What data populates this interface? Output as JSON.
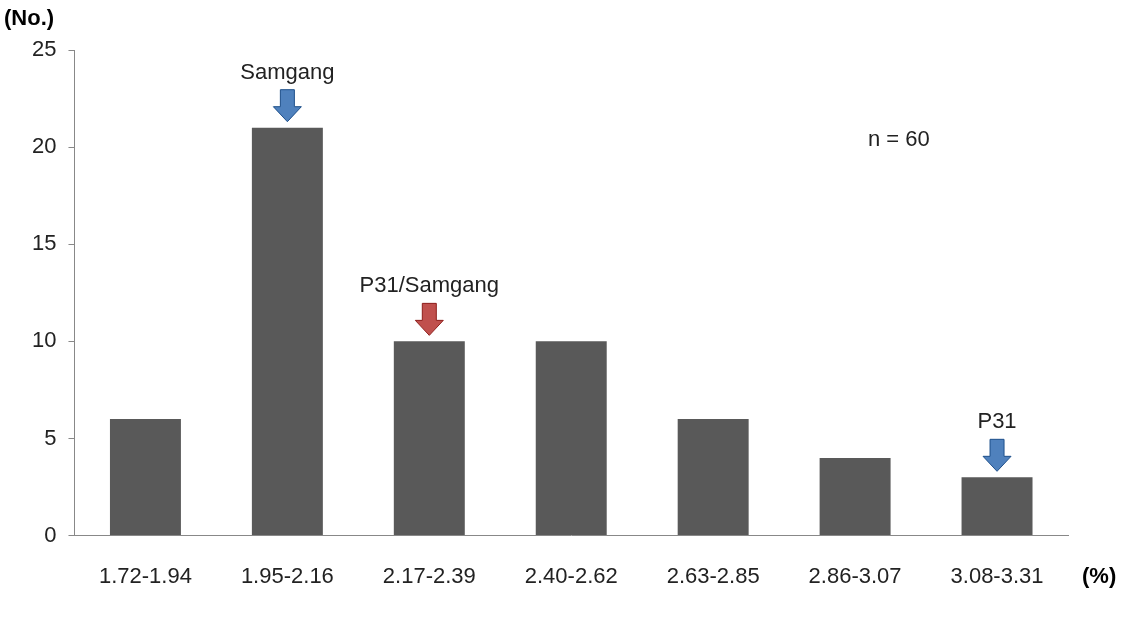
{
  "chart_data": {
    "type": "bar",
    "x_label": "(%)",
    "y_label": "(No.)",
    "categories": [
      "1.72-1.94",
      "1.95-2.16",
      "2.17-2.39",
      "2.40-2.62",
      "2.63-2.85",
      "2.86-3.07",
      "3.08-3.31"
    ],
    "values": [
      6,
      21,
      10,
      10,
      6,
      4,
      3
    ],
    "color": "#595959",
    "ylim": [
      0,
      25
    ],
    "yticks": [
      0,
      5,
      10,
      15,
      20,
      25
    ],
    "grid": false,
    "annotations": [
      {
        "text": "Samgang",
        "category": "1.95-2.16",
        "color": "#4f81bd"
      },
      {
        "text": "P31/Samgang",
        "category": "2.17-2.39",
        "color": "#c0504d"
      },
      {
        "text": "P31",
        "category": "3.08-3.31",
        "color": "#4f81bd"
      },
      {
        "text": "n = 60"
      }
    ]
  }
}
